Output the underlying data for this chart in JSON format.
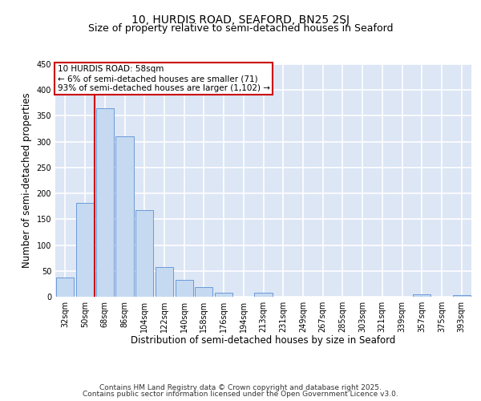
{
  "title1": "10, HURDIS ROAD, SEAFORD, BN25 2SJ",
  "title2": "Size of property relative to semi-detached houses in Seaford",
  "xlabel": "Distribution of semi-detached houses by size in Seaford",
  "ylabel": "Number of semi-detached properties",
  "categories": [
    "32sqm",
    "50sqm",
    "68sqm",
    "86sqm",
    "104sqm",
    "122sqm",
    "140sqm",
    "158sqm",
    "176sqm",
    "194sqm",
    "213sqm",
    "231sqm",
    "249sqm",
    "267sqm",
    "285sqm",
    "303sqm",
    "321sqm",
    "339sqm",
    "357sqm",
    "375sqm",
    "393sqm"
  ],
  "values": [
    38,
    181,
    365,
    311,
    168,
    58,
    33,
    19,
    8,
    0,
    7,
    0,
    0,
    0,
    0,
    0,
    0,
    0,
    4,
    0,
    3
  ],
  "bar_color": "#c5d9f1",
  "bar_edge_color": "#5b8fd4",
  "background_color": "#dce6f5",
  "grid_color": "#ffffff",
  "annotation_box_title": "10 HURDIS ROAD: 58sqm",
  "annotation_line1": "← 6% of semi-detached houses are smaller (71)",
  "annotation_line2": "93% of semi-detached houses are larger (1,102) →",
  "annotation_box_edge": "#cc0000",
  "vline_color": "#cc0000",
  "ylim": [
    0,
    450
  ],
  "yticks": [
    0,
    50,
    100,
    150,
    200,
    250,
    300,
    350,
    400,
    450
  ],
  "footer1": "Contains HM Land Registry data © Crown copyright and database right 2025.",
  "footer2": "Contains public sector information licensed under the Open Government Licence v3.0.",
  "title1_fontsize": 10,
  "title2_fontsize": 9,
  "tick_fontsize": 7,
  "axis_label_fontsize": 8.5,
  "footer_fontsize": 6.5,
  "ann_fontsize": 7.5
}
